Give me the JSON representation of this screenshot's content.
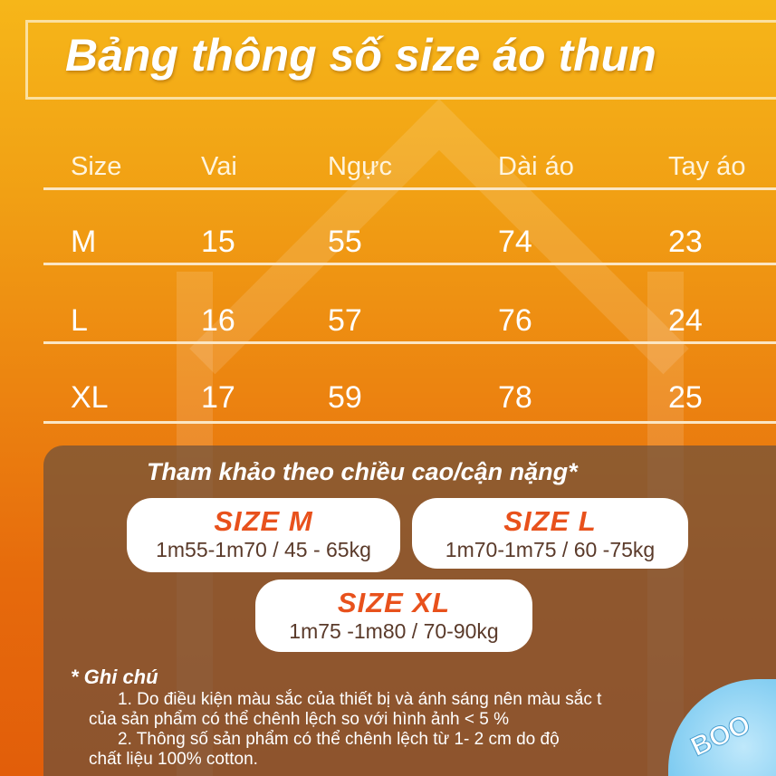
{
  "title": "Bảng thông số size áo thun",
  "table": {
    "headers": [
      "Size",
      "Vai",
      "Ngực",
      "Dài áo",
      "Tay áo"
    ],
    "rows": [
      [
        "M",
        "15",
        "55",
        "74",
        "23"
      ],
      [
        "L",
        "16",
        "57",
        "76",
        "24"
      ],
      [
        "XL",
        "17",
        "59",
        "78",
        "25"
      ]
    ]
  },
  "reference": {
    "title": "Tham khảo theo chiều cao/cận nặng*",
    "sizes": [
      {
        "label": "SIZE  M",
        "range": "1m55-1m70 / 45 - 65kg"
      },
      {
        "label": "SIZE  L",
        "range": "1m70-1m75 / 60 -75kg"
      },
      {
        "label": "SIZE  XL",
        "range": "1m75 -1m80 / 70-90kg"
      }
    ]
  },
  "notes": {
    "heading": "* Ghi chú",
    "lines": [
      "1. Do điều kiện màu sắc của thiết bị và ánh sáng nên màu sắc t",
      "của sản phẩm có thể chênh lệch so với hình ảnh < 5 %",
      "2. Thông số sản phẩm có thể chênh lệch từ 1- 2 cm do độ",
      "chất liệu 100% cotton."
    ]
  },
  "badge": "BOO",
  "colors": {
    "accent": "#e8511c",
    "panel": "#6e503c",
    "bg_top": "#f6b619",
    "bg_bottom": "#e25e0a"
  }
}
